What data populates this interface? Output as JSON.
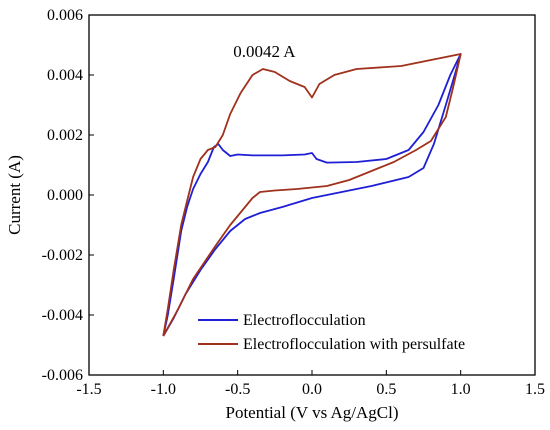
{
  "chart_data": {
    "type": "line",
    "xlabel": "Potential (V vs Ag/AgCl)",
    "ylabel": "Current (A)",
    "xlim": [
      -1.5,
      1.5
    ],
    "ylim": [
      -0.006,
      0.006
    ],
    "xticks": [
      -1.5,
      -1.0,
      -0.5,
      0.0,
      0.5,
      1.0,
      1.5
    ],
    "xtick_labels": [
      "-1.5",
      "-1.0",
      "-0.5",
      "0.0",
      "0.5",
      "1.0",
      "1.5"
    ],
    "yticks": [
      -0.006,
      -0.004,
      -0.002,
      0.0,
      0.002,
      0.004,
      0.006
    ],
    "ytick_labels": [
      "-0.006",
      "-0.004",
      "-0.002",
      "0.000",
      "0.002",
      "0.004",
      "0.006"
    ],
    "grid": false,
    "legend_position": "bottom-right",
    "annotations": [
      {
        "text": "0.0042 A",
        "x": -0.53,
        "y": 0.0046
      }
    ],
    "series": [
      {
        "name": "Electroflocculation",
        "color": "#1f1fd6",
        "points": [
          [
            -1.0,
            -0.0047
          ],
          [
            -0.97,
            -0.004
          ],
          [
            -0.93,
            -0.0028
          ],
          [
            -0.88,
            -0.0012
          ],
          [
            -0.84,
            -0.0004
          ],
          [
            -0.8,
            0.0002
          ],
          [
            -0.75,
            0.0007
          ],
          [
            -0.7,
            0.0011
          ],
          [
            -0.66,
            0.0016
          ],
          [
            -0.63,
            0.0017
          ],
          [
            -0.6,
            0.0015
          ],
          [
            -0.55,
            0.0013
          ],
          [
            -0.5,
            0.00135
          ],
          [
            -0.4,
            0.00132
          ],
          [
            -0.2,
            0.00132
          ],
          [
            -0.05,
            0.00135
          ],
          [
            0.0,
            0.0014
          ],
          [
            0.03,
            0.0012
          ],
          [
            0.1,
            0.00108
          ],
          [
            0.3,
            0.0011
          ],
          [
            0.5,
            0.0012
          ],
          [
            0.65,
            0.0015
          ],
          [
            0.75,
            0.0021
          ],
          [
            0.85,
            0.003
          ],
          [
            0.93,
            0.004
          ],
          [
            1.0,
            0.0047
          ],
          [
            0.96,
            0.004
          ],
          [
            0.9,
            0.003
          ],
          [
            0.82,
            0.0017
          ],
          [
            0.75,
            0.0009
          ],
          [
            0.65,
            0.0006
          ],
          [
            0.4,
            0.0003
          ],
          [
            0.2,
            0.0001
          ],
          [
            0.0,
            -0.0001
          ],
          [
            -0.2,
            -0.0004
          ],
          [
            -0.35,
            -0.0006
          ],
          [
            -0.45,
            -0.0008
          ],
          [
            -0.55,
            -0.0012
          ],
          [
            -0.65,
            -0.0018
          ],
          [
            -0.75,
            -0.0025
          ],
          [
            -0.85,
            -0.0033
          ],
          [
            -0.93,
            -0.0041
          ],
          [
            -1.0,
            -0.0047
          ]
        ]
      },
      {
        "name": "Electroflocculation with persulfate",
        "color": "#a0311c",
        "points": [
          [
            -1.0,
            -0.0047
          ],
          [
            -0.97,
            -0.0038
          ],
          [
            -0.93,
            -0.0025
          ],
          [
            -0.88,
            -0.001
          ],
          [
            -0.84,
            -0.0002
          ],
          [
            -0.8,
            0.0006
          ],
          [
            -0.75,
            0.0012
          ],
          [
            -0.7,
            0.0015
          ],
          [
            -0.65,
            0.0016
          ],
          [
            -0.6,
            0.002
          ],
          [
            -0.55,
            0.0027
          ],
          [
            -0.48,
            0.0034
          ],
          [
            -0.4,
            0.004
          ],
          [
            -0.33,
            0.0042
          ],
          [
            -0.25,
            0.0041
          ],
          [
            -0.15,
            0.0038
          ],
          [
            -0.05,
            0.0036
          ],
          [
            0.0,
            0.00325
          ],
          [
            0.05,
            0.0037
          ],
          [
            0.15,
            0.004
          ],
          [
            0.3,
            0.0042
          ],
          [
            0.6,
            0.0043
          ],
          [
            0.8,
            0.0045
          ],
          [
            1.0,
            0.0047
          ],
          [
            0.95,
            0.0036
          ],
          [
            0.9,
            0.0026
          ],
          [
            0.8,
            0.0018
          ],
          [
            0.7,
            0.0015
          ],
          [
            0.55,
            0.0011
          ],
          [
            0.4,
            0.0008
          ],
          [
            0.25,
            0.0005
          ],
          [
            0.1,
            0.0003
          ],
          [
            -0.1,
            0.0002
          ],
          [
            -0.25,
            0.00015
          ],
          [
            -0.35,
            0.0001
          ],
          [
            -0.4,
            -0.0001
          ],
          [
            -0.45,
            -0.0004
          ],
          [
            -0.55,
            -0.001
          ],
          [
            -0.65,
            -0.0017
          ],
          [
            -0.8,
            -0.0028
          ],
          [
            -0.9,
            -0.0038
          ],
          [
            -1.0,
            -0.0047
          ]
        ]
      }
    ]
  }
}
